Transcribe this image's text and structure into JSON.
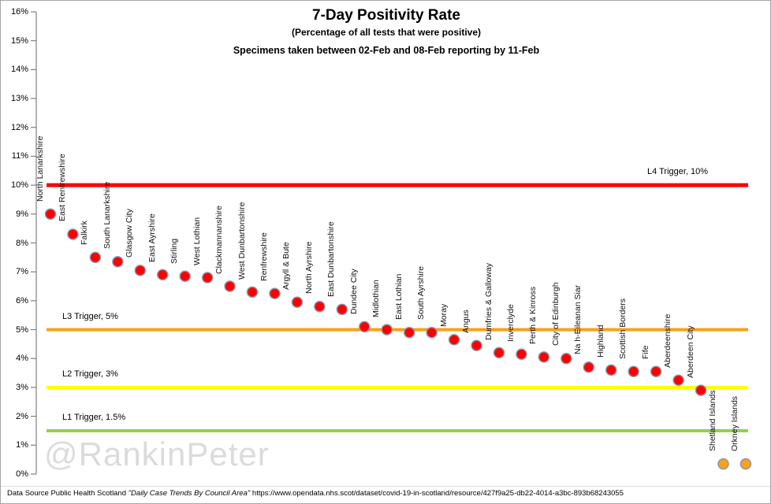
{
  "watermark": "@RankinPeter",
  "footer": {
    "prefix": "Data Source Public Health Scotland ",
    "quoted": "\"Daily Case Trends By Council Area\"",
    "url": " https://www.opendata.nhs.scot/dataset/covid-19-in-scotland/resource/427f9a25-db22-4014-a3bc-893b68243055"
  },
  "chart_data": {
    "type": "scatter",
    "title": "7-Day Positivity Rate",
    "subtitle": "(Percentage of all tests that were positive)",
    "period_note": "Specimens taken between 02-Feb and 08-Feb reporting by 11-Feb",
    "xlabel": "",
    "ylabel": "",
    "y_axis": {
      "min": 0,
      "max": 16,
      "step": 1,
      "tick_labels": [
        "16%",
        "15%",
        "14%",
        "13%",
        "12%",
        "11%",
        "10%",
        "9%",
        "8%",
        "7%",
        "6%",
        "5%",
        "4%",
        "3%",
        "2%",
        "1%",
        "0%"
      ]
    },
    "grid": false,
    "legend": false,
    "marker_colors": {
      "default_fill": "#ff0000",
      "island_fill": "#f9a11b",
      "stroke": "#8d96ab"
    },
    "points": [
      {
        "label": "North Lanarkshire",
        "value": 9.0,
        "color": "default"
      },
      {
        "label": "East Renfrewshire",
        "value": 8.3,
        "color": "default"
      },
      {
        "label": "Falkirk",
        "value": 7.5,
        "color": "default"
      },
      {
        "label": "South Lanarkshire",
        "value": 7.35,
        "color": "default"
      },
      {
        "label": "Glasgow City",
        "value": 7.05,
        "color": "default"
      },
      {
        "label": "East Ayrshire",
        "value": 6.9,
        "color": "default"
      },
      {
        "label": "Stirling",
        "value": 6.85,
        "color": "default"
      },
      {
        "label": "West Lothian",
        "value": 6.8,
        "color": "default"
      },
      {
        "label": "Clackmannanshire",
        "value": 6.5,
        "color": "default"
      },
      {
        "label": "West Dunbartonshire",
        "value": 6.3,
        "color": "default"
      },
      {
        "label": "Renfrewshire",
        "value": 6.25,
        "color": "default"
      },
      {
        "label": "Argyll & Bute",
        "value": 5.95,
        "color": "default"
      },
      {
        "label": "North Ayrshire",
        "value": 5.8,
        "color": "default"
      },
      {
        "label": "East Dunbartonshire",
        "value": 5.7,
        "color": "default"
      },
      {
        "label": "Dundee City",
        "value": 5.1,
        "color": "default"
      },
      {
        "label": "Midlothian",
        "value": 5.0,
        "color": "default"
      },
      {
        "label": "East Lothian",
        "value": 4.9,
        "color": "default"
      },
      {
        "label": "South Ayrshire",
        "value": 4.9,
        "color": "default"
      },
      {
        "label": "Moray",
        "value": 4.65,
        "color": "default"
      },
      {
        "label": "Angus",
        "value": 4.45,
        "color": "default"
      },
      {
        "label": "Dumfries & Galloway",
        "value": 4.2,
        "color": "default"
      },
      {
        "label": "Inverclyde",
        "value": 4.15,
        "color": "default"
      },
      {
        "label": "Perth & Kinross",
        "value": 4.05,
        "color": "default"
      },
      {
        "label": "City of Edinburgh",
        "value": 4.0,
        "color": "default"
      },
      {
        "label": "Na h-Eileanan Siar",
        "value": 3.7,
        "color": "default"
      },
      {
        "label": "Highland",
        "value": 3.6,
        "color": "default"
      },
      {
        "label": "Scottish Borders",
        "value": 3.55,
        "color": "default"
      },
      {
        "label": "Fife",
        "value": 3.55,
        "color": "default"
      },
      {
        "label": "Aberdeenshire",
        "value": 3.25,
        "color": "default"
      },
      {
        "label": "Aberdeen City",
        "value": 2.9,
        "color": "default"
      },
      {
        "label": "Shetland Islands",
        "value": 0.35,
        "color": "island"
      },
      {
        "label": "Orkney Islands",
        "value": 0.35,
        "color": "island"
      }
    ],
    "trigger_lines": [
      {
        "name": "L4",
        "label": "L4 Trigger, 10%",
        "value": 10,
        "color": "#ff0000",
        "label_side": "right"
      },
      {
        "name": "L3",
        "label": "L3 Trigger, 5%",
        "value": 5,
        "color": "#f8a01c",
        "label_side": "left"
      },
      {
        "name": "L2",
        "label": "L2 Trigger, 3%",
        "value": 3,
        "color": "#ffff00",
        "label_side": "left"
      },
      {
        "name": "L1",
        "label": "L1 Trigger, 1.5%",
        "value": 1.5,
        "color": "#92d050",
        "label_side": "left"
      }
    ]
  }
}
